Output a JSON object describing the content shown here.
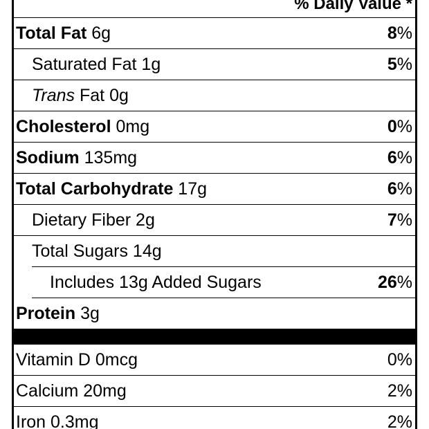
{
  "header": {
    "daily_value_label": "% Daily Value *"
  },
  "rows": [
    {
      "bold": "Total Fat",
      "rest": " 6g",
      "pct_bold": "8",
      "pct_rest": "%"
    },
    {
      "bold": "",
      "rest": "Saturated Fat 1g",
      "pct_bold": "5",
      "pct_rest": "%"
    },
    {
      "italic": "Trans",
      "rest": " Fat 0g"
    },
    {
      "bold": "Cholesterol",
      "rest": " 0mg",
      "pct_bold": "0",
      "pct_rest": "%"
    },
    {
      "bold": "Sodium",
      "rest": " 135mg",
      "pct_bold": "6",
      "pct_rest": "%"
    },
    {
      "bold": "Total Carbohydrate",
      "rest": " 17g",
      "pct_bold": "6",
      "pct_rest": "%"
    },
    {
      "bold": "",
      "rest": "Dietary Fiber 2g",
      "pct_bold": "7",
      "pct_rest": "%"
    },
    {
      "bold": "",
      "rest": "Total Sugars 14g"
    },
    {
      "bold": "",
      "rest": "Includes 13g Added Sugars",
      "pct_bold": "26",
      "pct_rest": "%"
    },
    {
      "bold": "Protein",
      "rest": " 3g"
    }
  ],
  "vitamins": [
    {
      "name": "Vitamin D 0mcg",
      "pct": "0%"
    },
    {
      "name": "Calcium 20mg",
      "pct": "2%"
    },
    {
      "name": "Iron 0.3mg",
      "pct": "2%"
    }
  ]
}
